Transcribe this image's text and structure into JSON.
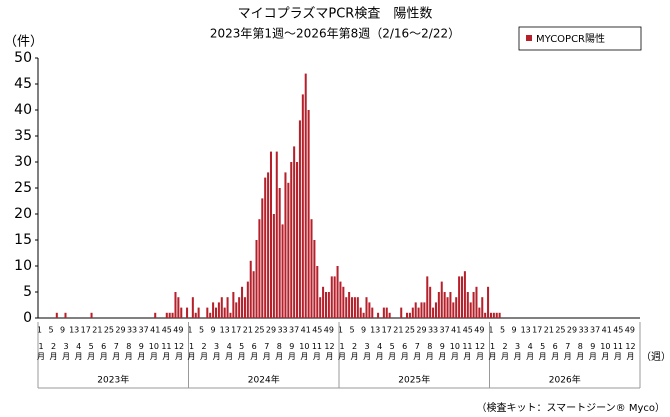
{
  "chart_data": {
    "type": "bar",
    "title": "マイコプラズマPCR検査　陽性数",
    "subtitle": "2023年第1週～2026年第8週（2/16～2/22）",
    "y_unit_label": "（件）",
    "x_unit_label": "（週）",
    "footnote": "（検査キット：スマートジーン® Myco）",
    "categories": [
      "1",
      null,
      null,
      null,
      "5",
      null,
      null,
      null,
      "9",
      null,
      null,
      null,
      "13",
      null,
      null,
      null,
      "17",
      null,
      null,
      null,
      "21",
      null,
      null,
      null,
      "25",
      null,
      null,
      null,
      "29",
      null,
      null,
      null,
      "33",
      null,
      null,
      null,
      "37",
      null,
      null,
      null,
      "41",
      null,
      null,
      null,
      "45",
      null,
      null,
      null,
      "49",
      null,
      null,
      null,
      "1",
      null,
      null,
      null,
      "5",
      null,
      null,
      null,
      "9",
      null,
      null,
      null,
      "13",
      null,
      null,
      null,
      "17",
      null,
      null,
      null,
      "21",
      null,
      null,
      null,
      "25",
      null,
      null,
      null,
      "29",
      null,
      null,
      null,
      "33",
      null,
      null,
      null,
      "37",
      null,
      null,
      null,
      "41",
      null,
      null,
      null,
      "45",
      null,
      null,
      null,
      "49",
      null,
      null,
      null,
      "1",
      null,
      null,
      null,
      "5",
      null,
      null,
      null,
      "9",
      null,
      null,
      null,
      "13",
      null,
      null,
      null,
      "17",
      null,
      null,
      null,
      "21",
      null,
      null,
      null,
      "25",
      null,
      null,
      null,
      "29",
      null,
      null,
      null,
      "33",
      null,
      null,
      null,
      "37",
      null,
      null,
      null,
      "41",
      null,
      null,
      null,
      "45",
      null,
      null,
      null,
      "49",
      null,
      null,
      null,
      "1",
      null,
      null,
      null,
      "5",
      null,
      null,
      null,
      "9",
      null,
      null,
      null,
      "13",
      null,
      null,
      null,
      "17",
      null,
      null,
      null,
      "21",
      null,
      null,
      null,
      "25",
      null,
      null,
      null,
      "29",
      null,
      null,
      null,
      "33",
      null,
      null,
      null,
      "37",
      null,
      null,
      null,
      "41",
      null,
      null,
      null,
      "45",
      null,
      null,
      null,
      "49",
      null,
      null,
      null
    ],
    "years": [
      {
        "name": "2023年",
        "months": [
          "1月",
          "2月",
          "3月",
          "4月",
          "5月",
          "6月",
          "7月",
          "8月",
          "9月",
          "10月",
          "11月",
          "12月"
        ]
      },
      {
        "name": "2024年",
        "months": [
          "1月",
          "2月",
          "3月",
          "4月",
          "5月",
          "6月",
          "7月",
          "8月",
          "9月",
          "10月",
          "11月",
          "12月"
        ]
      },
      {
        "name": "2025年",
        "months": [
          "1月",
          "2月",
          "3月",
          "4月",
          "5月",
          "6月",
          "7月",
          "8月",
          "9月",
          "10月",
          "11月",
          "12月"
        ]
      },
      {
        "name": "2026年",
        "months": [
          "1月",
          "2月",
          "3月",
          "4月",
          "5月",
          "6月",
          "7月",
          "8月",
          "9月",
          "10月",
          "11月",
          "12月"
        ]
      }
    ],
    "series": [
      {
        "name": "MYCOPCR陽性",
        "color": "#b5202a",
        "values": [
          0,
          0,
          0,
          0,
          0,
          0,
          1,
          0,
          0,
          1,
          0,
          0,
          0,
          0,
          0,
          0,
          0,
          0,
          1,
          0,
          0,
          0,
          0,
          0,
          0,
          0,
          0,
          0,
          0,
          0,
          0,
          0,
          0,
          0,
          0,
          0,
          0,
          0,
          0,
          0,
          1,
          0,
          0,
          0,
          1,
          1,
          1,
          5,
          4,
          2,
          0,
          2,
          0,
          4,
          1,
          2,
          0,
          0,
          2,
          1,
          3,
          2,
          3,
          4,
          2,
          4,
          1,
          5,
          3,
          4,
          6,
          4,
          7,
          11,
          9,
          15,
          19,
          23,
          27,
          28,
          32,
          20,
          32,
          25,
          18,
          28,
          26,
          30,
          33,
          30,
          38,
          43,
          47,
          40,
          19,
          15,
          10,
          4,
          6,
          5,
          5,
          8,
          8,
          10,
          7,
          6,
          4,
          5,
          4,
          4,
          4,
          2,
          1,
          4,
          3,
          2,
          0,
          1,
          0,
          2,
          2,
          1,
          0,
          0,
          0,
          2,
          0,
          1,
          1,
          2,
          3,
          2,
          3,
          3,
          8,
          6,
          2,
          3,
          5,
          7,
          5,
          4,
          5,
          3,
          4,
          8,
          8,
          9,
          5,
          3,
          5,
          6,
          2,
          4,
          1,
          6,
          1,
          1,
          1,
          1,
          0,
          0,
          0,
          0,
          null,
          null,
          null,
          null,
          null,
          null,
          null,
          null,
          null,
          null,
          null,
          null,
          null,
          null,
          null,
          null,
          null,
          null,
          null,
          null,
          null,
          null,
          null,
          null,
          null,
          null,
          null,
          null,
          null,
          null,
          null,
          null,
          null,
          null,
          null,
          null,
          null,
          null,
          null,
          null,
          null,
          null,
          null,
          null
        ]
      }
    ],
    "ylim": [
      0,
      50
    ],
    "yticks": [
      0,
      5,
      10,
      15,
      20,
      25,
      30,
      35,
      40,
      45,
      50
    ],
    "grid": false,
    "legend": "top-right"
  }
}
